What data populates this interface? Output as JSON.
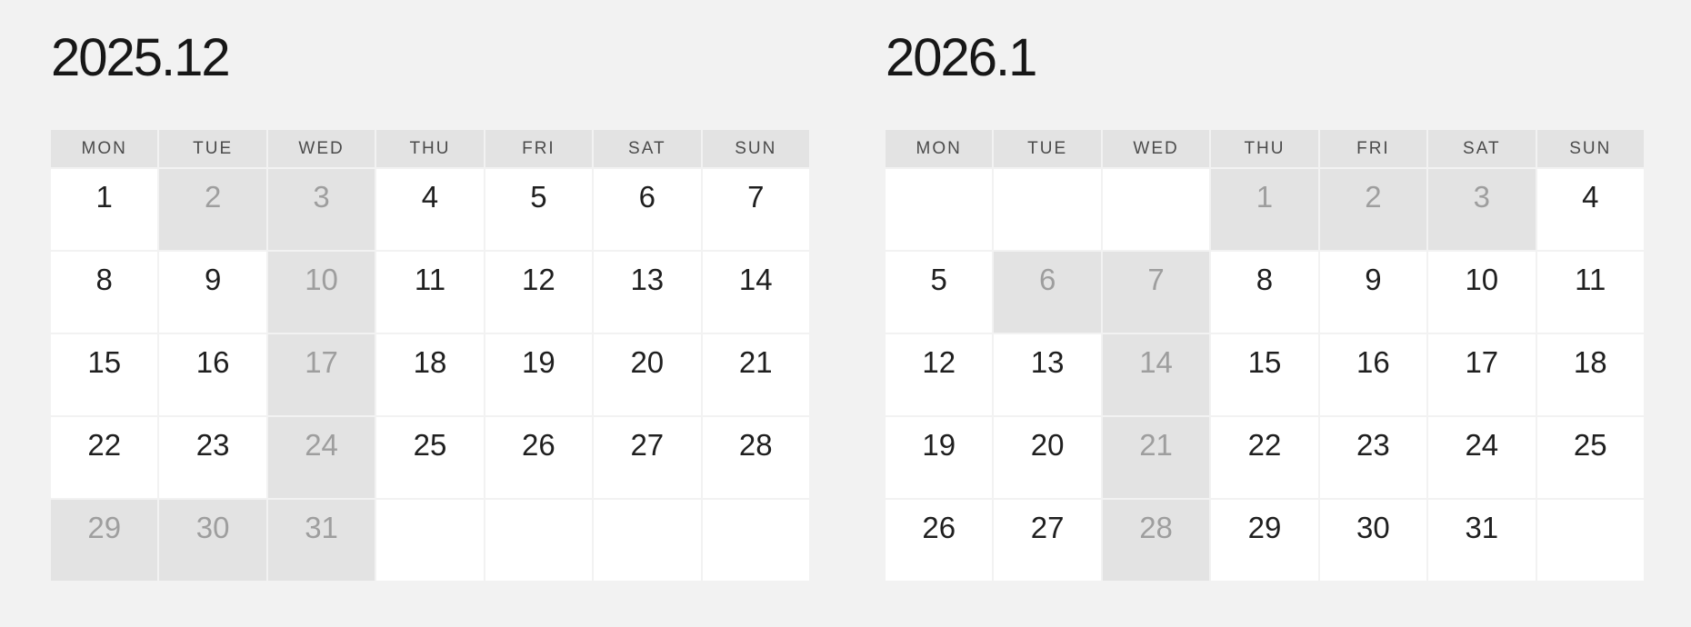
{
  "colors": {
    "page_bg": "#f2f2f2",
    "cell_bg": "#ffffff",
    "header_bg": "#e3e3e3",
    "disabled_bg": "#e3e3e3",
    "title_text": "#171717",
    "day_text": "#1f1f1f",
    "disabled_text": "#9e9e9e",
    "header_text": "#4b4b4b"
  },
  "weekdays": [
    "MON",
    "TUE",
    "WED",
    "THU",
    "FRI",
    "SAT",
    "SUN"
  ],
  "calendars": [
    {
      "title": "2025.12",
      "weeks": [
        [
          {
            "label": "1",
            "state": "open"
          },
          {
            "label": "2",
            "state": "closed"
          },
          {
            "label": "3",
            "state": "closed"
          },
          {
            "label": "4",
            "state": "open"
          },
          {
            "label": "5",
            "state": "open"
          },
          {
            "label": "6",
            "state": "open"
          },
          {
            "label": "7",
            "state": "open"
          }
        ],
        [
          {
            "label": "8",
            "state": "open"
          },
          {
            "label": "9",
            "state": "open"
          },
          {
            "label": "10",
            "state": "closed"
          },
          {
            "label": "11",
            "state": "open"
          },
          {
            "label": "12",
            "state": "open"
          },
          {
            "label": "13",
            "state": "open"
          },
          {
            "label": "14",
            "state": "open"
          }
        ],
        [
          {
            "label": "15",
            "state": "open"
          },
          {
            "label": "16",
            "state": "open"
          },
          {
            "label": "17",
            "state": "closed"
          },
          {
            "label": "18",
            "state": "open"
          },
          {
            "label": "19",
            "state": "open"
          },
          {
            "label": "20",
            "state": "open"
          },
          {
            "label": "21",
            "state": "open"
          }
        ],
        [
          {
            "label": "22",
            "state": "open"
          },
          {
            "label": "23",
            "state": "open"
          },
          {
            "label": "24",
            "state": "closed"
          },
          {
            "label": "25",
            "state": "open"
          },
          {
            "label": "26",
            "state": "open"
          },
          {
            "label": "27",
            "state": "open"
          },
          {
            "label": "28",
            "state": "open"
          }
        ],
        [
          {
            "label": "29",
            "state": "closed"
          },
          {
            "label": "30",
            "state": "closed"
          },
          {
            "label": "31",
            "state": "closed"
          },
          {
            "label": "",
            "state": "empty"
          },
          {
            "label": "",
            "state": "empty"
          },
          {
            "label": "",
            "state": "empty"
          },
          {
            "label": "",
            "state": "empty"
          }
        ]
      ]
    },
    {
      "title": "2026.1",
      "weeks": [
        [
          {
            "label": "",
            "state": "empty"
          },
          {
            "label": "",
            "state": "empty"
          },
          {
            "label": "",
            "state": "empty"
          },
          {
            "label": "1",
            "state": "closed"
          },
          {
            "label": "2",
            "state": "closed"
          },
          {
            "label": "3",
            "state": "closed"
          },
          {
            "label": "4",
            "state": "open"
          }
        ],
        [
          {
            "label": "5",
            "state": "open"
          },
          {
            "label": "6",
            "state": "closed"
          },
          {
            "label": "7",
            "state": "closed"
          },
          {
            "label": "8",
            "state": "open"
          },
          {
            "label": "9",
            "state": "open"
          },
          {
            "label": "10",
            "state": "open"
          },
          {
            "label": "11",
            "state": "open"
          }
        ],
        [
          {
            "label": "12",
            "state": "open"
          },
          {
            "label": "13",
            "state": "open"
          },
          {
            "label": "14",
            "state": "closed"
          },
          {
            "label": "15",
            "state": "open"
          },
          {
            "label": "16",
            "state": "open"
          },
          {
            "label": "17",
            "state": "open"
          },
          {
            "label": "18",
            "state": "open"
          }
        ],
        [
          {
            "label": "19",
            "state": "open"
          },
          {
            "label": "20",
            "state": "open"
          },
          {
            "label": "21",
            "state": "closed"
          },
          {
            "label": "22",
            "state": "open"
          },
          {
            "label": "23",
            "state": "open"
          },
          {
            "label": "24",
            "state": "open"
          },
          {
            "label": "25",
            "state": "open"
          }
        ],
        [
          {
            "label": "26",
            "state": "open"
          },
          {
            "label": "27",
            "state": "open"
          },
          {
            "label": "28",
            "state": "closed"
          },
          {
            "label": "29",
            "state": "open"
          },
          {
            "label": "30",
            "state": "open"
          },
          {
            "label": "31",
            "state": "open"
          },
          {
            "label": "",
            "state": "empty"
          }
        ]
      ]
    }
  ]
}
